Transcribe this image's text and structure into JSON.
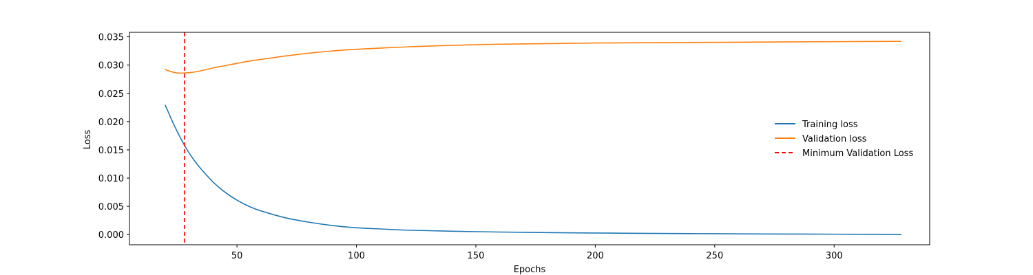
{
  "chart_data": {
    "type": "line",
    "title": "",
    "xlabel": "Epochs",
    "ylabel": "Loss",
    "xlim": [
      5,
      340
    ],
    "ylim": [
      -0.0018,
      0.0358
    ],
    "xticks": [
      50,
      100,
      150,
      200,
      250,
      300
    ],
    "yticks": [
      0.0,
      0.005,
      0.01,
      0.015,
      0.02,
      0.025,
      0.03,
      0.035
    ],
    "ytick_labels": [
      "0.000",
      "0.005",
      "0.010",
      "0.015",
      "0.020",
      "0.025",
      "0.030",
      "0.035"
    ],
    "grid": false,
    "legend_position": "center-right",
    "series": [
      {
        "name": "Training loss",
        "color": "#1f77b4",
        "style": "solid",
        "x": [
          20,
          23,
          26,
          29,
          32,
          35,
          40,
          45,
          50,
          55,
          60,
          70,
          80,
          90,
          100,
          110,
          120,
          140,
          160,
          180,
          200,
          220,
          240,
          260,
          280,
          300,
          328
        ],
        "y": [
          0.0229,
          0.02,
          0.0174,
          0.0151,
          0.0132,
          0.0116,
          0.0093,
          0.0075,
          0.0061,
          0.005,
          0.0042,
          0.003,
          0.0022,
          0.0016,
          0.0012,
          0.001,
          0.0008,
          0.0006,
          0.00045,
          0.00035,
          0.00028,
          0.00022,
          0.00017,
          0.00013,
          0.0001,
          7e-05,
          3e-05
        ]
      },
      {
        "name": "Validation loss",
        "color": "#ff7f0e",
        "style": "solid",
        "x": [
          20,
          22,
          25,
          28,
          31,
          35,
          40,
          45,
          50,
          55,
          60,
          70,
          80,
          90,
          100,
          120,
          140,
          160,
          180,
          200,
          240,
          280,
          328
        ],
        "y": [
          0.0292,
          0.0289,
          0.0286,
          0.0286,
          0.0287,
          0.029,
          0.0295,
          0.0299,
          0.0303,
          0.0307,
          0.031,
          0.0316,
          0.0321,
          0.0325,
          0.0328,
          0.0332,
          0.0335,
          0.0337,
          0.0338,
          0.0339,
          0.034,
          0.0341,
          0.0342
        ]
      }
    ],
    "vlines": [
      {
        "name": "Minimum Validation Loss",
        "x": 28,
        "color": "#ff0000",
        "style": "dashed"
      }
    ]
  }
}
